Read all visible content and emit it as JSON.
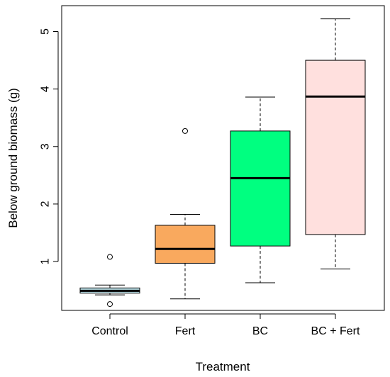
{
  "chart_data": {
    "type": "boxplot",
    "xlabel": "Treatment",
    "ylabel": "Below ground biomass (g)",
    "ylim": [
      0.15,
      5.45
    ],
    "yticks": [
      1,
      2,
      3,
      4,
      5
    ],
    "categories": [
      "Control",
      "Fert",
      "BC",
      "BC + Fert"
    ],
    "boxes": [
      {
        "category": "Control",
        "whisker_low": 0.42,
        "q1": 0.45,
        "median": 0.49,
        "q3": 0.54,
        "whisker_high": 0.59,
        "outliers": [
          1.08,
          0.26
        ],
        "color": "#bfe4ec"
      },
      {
        "category": "Fert",
        "whisker_low": 0.35,
        "q1": 0.97,
        "median": 1.22,
        "q3": 1.63,
        "whisker_high": 1.82,
        "outliers": [
          3.27
        ],
        "color": "#f9a95e"
      },
      {
        "category": "BC",
        "whisker_low": 0.63,
        "q1": 1.27,
        "median": 2.45,
        "q3": 3.27,
        "whisker_high": 3.86,
        "outliers": [],
        "color": "#00ff80"
      },
      {
        "category": "BC + Fert",
        "whisker_low": 0.87,
        "q1": 1.47,
        "median": 3.87,
        "q3": 4.5,
        "whisker_high": 5.22,
        "outliers": [],
        "color": "#ffe0de"
      }
    ]
  }
}
